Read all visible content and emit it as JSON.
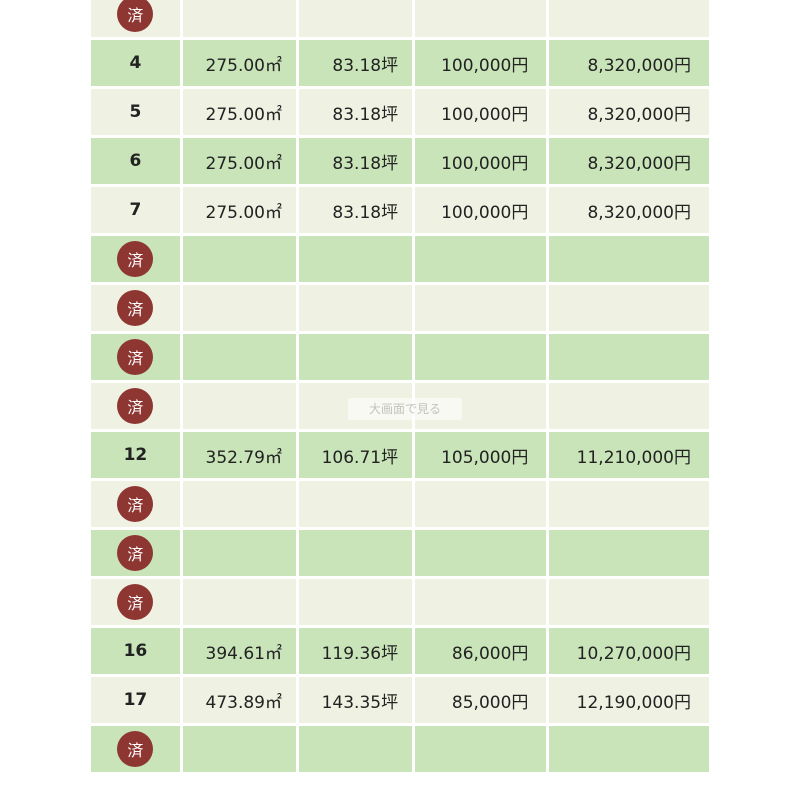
{
  "table": {
    "rows": [
      {
        "no": "",
        "sold": true,
        "sold_label": "済",
        "area": "",
        "tsubo": "",
        "unit_price": "",
        "total": ""
      },
      {
        "no": "4",
        "sold": false,
        "sold_label": "",
        "area": "275.00㎡",
        "tsubo": "83.18坪",
        "unit_price": "100,000円",
        "total": "8,320,000円"
      },
      {
        "no": "5",
        "sold": false,
        "sold_label": "",
        "area": "275.00㎡",
        "tsubo": "83.18坪",
        "unit_price": "100,000円",
        "total": "8,320,000円"
      },
      {
        "no": "6",
        "sold": false,
        "sold_label": "",
        "area": "275.00㎡",
        "tsubo": "83.18坪",
        "unit_price": "100,000円",
        "total": "8,320,000円"
      },
      {
        "no": "7",
        "sold": false,
        "sold_label": "",
        "area": "275.00㎡",
        "tsubo": "83.18坪",
        "unit_price": "100,000円",
        "total": "8,320,000円"
      },
      {
        "no": "",
        "sold": true,
        "sold_label": "済",
        "area": "",
        "tsubo": "",
        "unit_price": "",
        "total": ""
      },
      {
        "no": "",
        "sold": true,
        "sold_label": "済",
        "area": "",
        "tsubo": "",
        "unit_price": "",
        "total": ""
      },
      {
        "no": "",
        "sold": true,
        "sold_label": "済",
        "area": "",
        "tsubo": "",
        "unit_price": "",
        "total": ""
      },
      {
        "no": "",
        "sold": true,
        "sold_label": "済",
        "area": "",
        "tsubo": "",
        "unit_price": "",
        "total": ""
      },
      {
        "no": "12",
        "sold": false,
        "sold_label": "",
        "area": "352.79㎡",
        "tsubo": "106.71坪",
        "unit_price": "105,000円",
        "total": "11,210,000円"
      },
      {
        "no": "",
        "sold": true,
        "sold_label": "済",
        "area": "",
        "tsubo": "",
        "unit_price": "",
        "total": ""
      },
      {
        "no": "",
        "sold": true,
        "sold_label": "済",
        "area": "",
        "tsubo": "",
        "unit_price": "",
        "total": ""
      },
      {
        "no": "",
        "sold": true,
        "sold_label": "済",
        "area": "",
        "tsubo": "",
        "unit_price": "",
        "total": ""
      },
      {
        "no": "16",
        "sold": false,
        "sold_label": "",
        "area": "394.61㎡",
        "tsubo": "119.36坪",
        "unit_price": "86,000円",
        "total": "10,270,000円"
      },
      {
        "no": "17",
        "sold": false,
        "sold_label": "",
        "area": "473.89㎡",
        "tsubo": "143.35坪",
        "unit_price": "85,000円",
        "total": "12,190,000円"
      },
      {
        "no": "",
        "sold": true,
        "sold_label": "済",
        "area": "",
        "tsubo": "",
        "unit_price": "",
        "total": ""
      }
    ],
    "colors": {
      "row_green": "#c8e4b8",
      "row_cream": "#eff2e2",
      "sold_badge": "#8e3632"
    }
  },
  "watermark": {
    "text": "大画面で見る"
  }
}
